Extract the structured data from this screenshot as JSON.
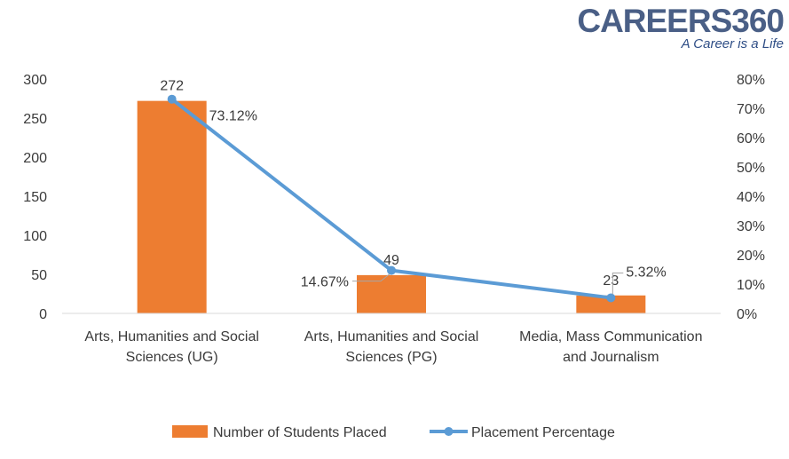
{
  "logo": {
    "name": "CAREERS360",
    "tagline": "A Career is a Life"
  },
  "colors": {
    "bar": "#ED7D31",
    "line": "#5B9BD5",
    "axis": "#d9d9d9",
    "text": "#3a3a3a",
    "leader": "#a6a6a6"
  },
  "chart_data": {
    "type": "bar",
    "categories": [
      [
        "Arts, Humanities and Social",
        "Sciences (UG)"
      ],
      [
        "Arts, Humanities and Social",
        "Sciences (PG)"
      ],
      [
        "Media, Mass Communication",
        "and Journalism"
      ]
    ],
    "series": [
      {
        "name": "Number of Students Placed",
        "type": "bar",
        "axis": "left",
        "values": [
          272,
          49,
          23
        ],
        "labels": [
          "272",
          "49",
          "23"
        ]
      },
      {
        "name": "Placement Percentage",
        "type": "line",
        "axis": "right",
        "values": [
          73.12,
          14.67,
          5.32
        ],
        "labels": [
          "73.12%",
          "14.67%",
          "5.32%"
        ]
      }
    ],
    "y_left": {
      "min": 0,
      "max": 300,
      "step": 50,
      "ticks": [
        "0",
        "50",
        "100",
        "150",
        "200",
        "250",
        "300"
      ]
    },
    "y_right": {
      "min": 0,
      "max": 80,
      "step": 10,
      "ticks": [
        "0%",
        "10%",
        "20%",
        "30%",
        "40%",
        "50%",
        "60%",
        "70%",
        "80%"
      ]
    },
    "grid": false,
    "legend_position": "bottom"
  }
}
